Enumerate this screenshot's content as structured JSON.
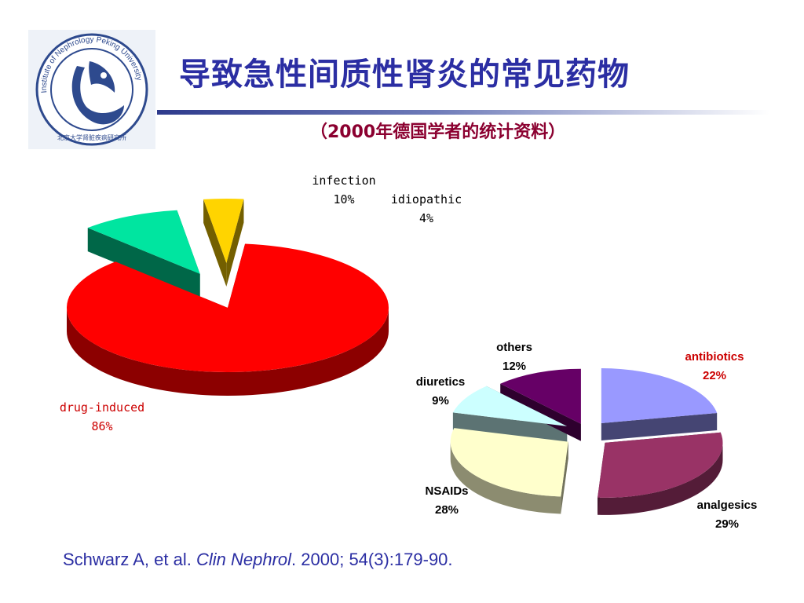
{
  "title": "导致急性间质性肾炎的常见药物",
  "subtitle": "（2000年德国学者的统计资料）",
  "logo": {
    "ring_text": "Institute of Nephrology Peking University",
    "bottom_text": "北京大学肾脏疾病研究所",
    "icon": "dove-logo-icon"
  },
  "citation": {
    "authors": "Schwarz A, et al.",
    "journal": "Clin Nephrol",
    "details": ". 2000; 54(3):179-90."
  },
  "colors": {
    "title": "#2b2ea3",
    "subtitle": "#8b0030"
  },
  "chart_data": [
    {
      "type": "pie",
      "style": "3d-exploded",
      "slices": [
        {
          "label": "drug-induced",
          "value": 86,
          "pct_label": "86%",
          "color": "#ff0000",
          "label_color": "#cc0000"
        },
        {
          "label": "infection",
          "value": 10,
          "pct_label": "10%",
          "color": "#00e5a0",
          "label_color": "#000000"
        },
        {
          "label": "idiopathic",
          "value": 4,
          "pct_label": "4%",
          "color": "#ffd400",
          "label_color": "#000000"
        }
      ]
    },
    {
      "type": "pie",
      "style": "3d-exploded",
      "slices": [
        {
          "label": "antibiotics",
          "value": 22,
          "pct_label": "22%",
          "color": "#9999ff",
          "label_color": "#cc0000"
        },
        {
          "label": "analgesics",
          "value": 29,
          "pct_label": "29%",
          "color": "#993366",
          "label_color": "#000000"
        },
        {
          "label": "NSAIDs",
          "value": 28,
          "pct_label": "28%",
          "color": "#ffffcc",
          "label_color": "#000000"
        },
        {
          "label": "diuretics",
          "value": 9,
          "pct_label": "9%",
          "color": "#ccffff",
          "label_color": "#000000"
        },
        {
          "label": "others",
          "value": 12,
          "pct_label": "12%",
          "color": "#660066",
          "label_color": "#000000"
        }
      ]
    }
  ]
}
